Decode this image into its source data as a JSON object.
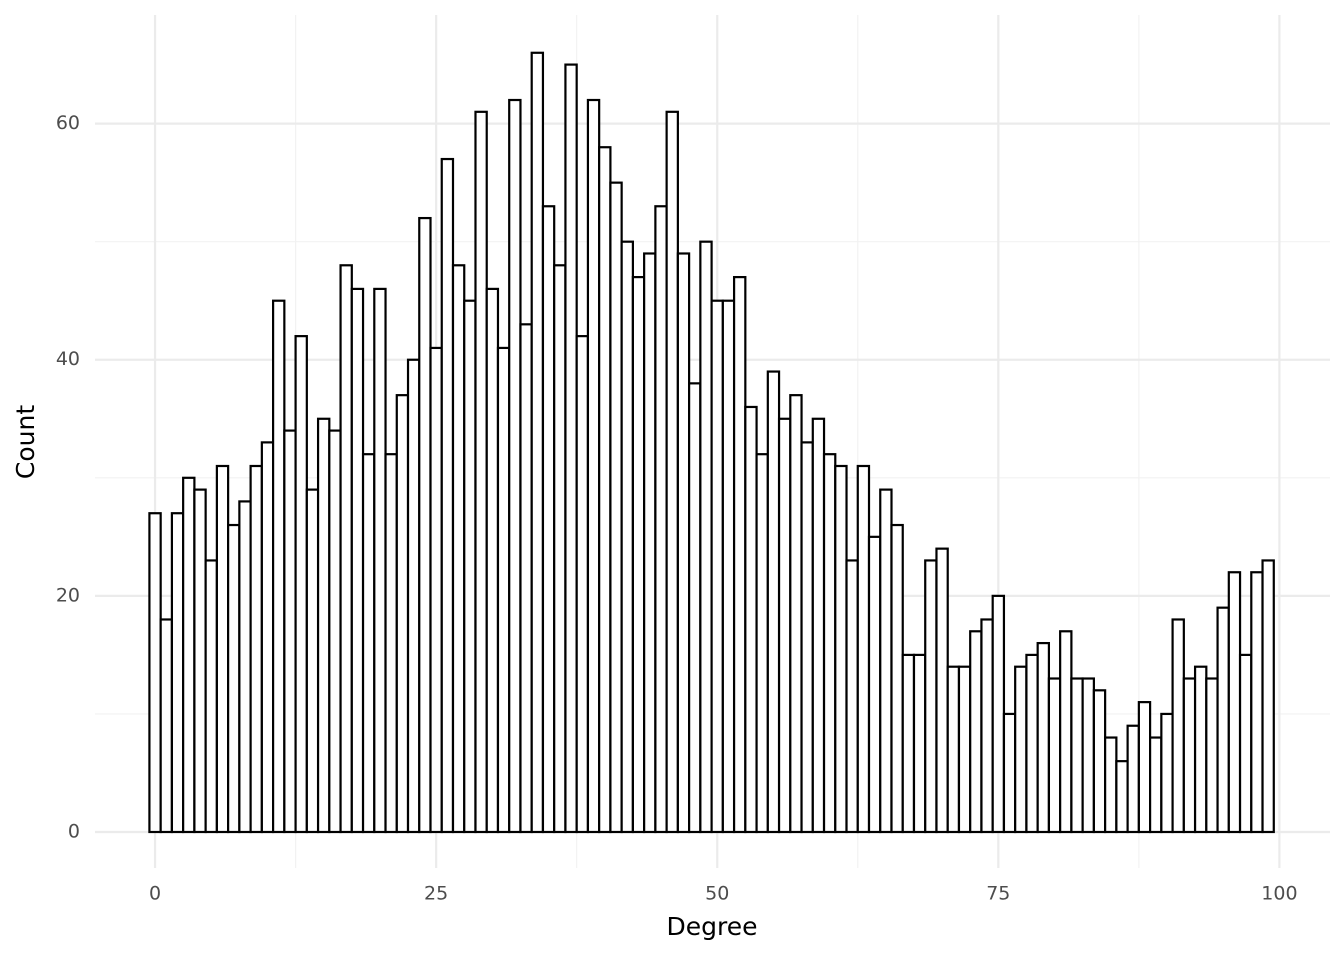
{
  "chart_data": {
    "type": "histogram",
    "x_label": "Degree",
    "y_label": "Count",
    "bins": [
      -0.5,
      0.5,
      1.5,
      2.5,
      3.5,
      4.5,
      5.5,
      6.5,
      7.5,
      8.5,
      9.5,
      10.5,
      11.5,
      12.5,
      13.5,
      14.5,
      15.5,
      16.5,
      17.5,
      18.5,
      19.5,
      20.5,
      21.5,
      22.5,
      23.5,
      24.5,
      25.5,
      26.5,
      27.5,
      28.5,
      29.5,
      30.5,
      31.5,
      32.5,
      33.5,
      34.5,
      35.5,
      36.5,
      37.5,
      38.5,
      39.5,
      40.5,
      41.5,
      42.5,
      43.5,
      44.5,
      45.5,
      46.5,
      47.5,
      48.5,
      49.5,
      50.5,
      51.5,
      52.5,
      53.5,
      54.5,
      55.5,
      56.5,
      57.5,
      58.5,
      59.5,
      60.5,
      61.5,
      62.5,
      63.5,
      64.5,
      65.5,
      66.5,
      67.5,
      68.5,
      69.5,
      70.5,
      71.5,
      72.5,
      73.5,
      74.5,
      75.5,
      76.5,
      77.5,
      78.5,
      79.5,
      80.5,
      81.5,
      82.5,
      83.5,
      84.5,
      85.5,
      86.5,
      87.5,
      88.5,
      89.5,
      90.5,
      91.5,
      92.5,
      93.5,
      94.5,
      95.5,
      96.5,
      97.5,
      98.5,
      99.5
    ],
    "values": [
      27,
      18,
      27,
      30,
      29,
      23,
      31,
      26,
      28,
      31,
      33,
      45,
      34,
      42,
      29,
      35,
      34,
      48,
      46,
      32,
      46,
      32,
      37,
      40,
      52,
      41,
      57,
      48,
      45,
      61,
      46,
      41,
      62,
      43,
      66,
      53,
      48,
      65,
      42,
      62,
      58,
      55,
      50,
      47,
      49,
      53,
      61,
      49,
      38,
      50,
      45,
      45,
      47,
      36,
      32,
      39,
      35,
      37,
      33,
      35,
      32,
      31,
      23,
      31,
      25,
      29,
      26,
      15,
      15,
      23,
      24,
      14,
      14,
      17,
      18,
      20,
      10,
      14,
      15,
      16,
      13,
      17,
      13,
      13,
      12,
      8,
      6,
      9,
      11,
      8,
      10,
      18,
      13,
      14,
      13,
      19,
      22,
      15,
      22,
      23
    ],
    "fill": "#ffffff",
    "edge_color": "#000000",
    "xlim": [
      -5.34,
      104.5
    ],
    "ylim": [
      -3.05,
      69.2
    ],
    "xticks": [
      0,
      25,
      50,
      75,
      100
    ],
    "yticks": [
      0,
      20,
      40,
      60
    ],
    "x_minor_ticks": [
      12.5,
      37.5,
      62.5,
      87.5
    ],
    "y_minor_ticks": [
      10,
      30,
      50
    ],
    "grid": true
  }
}
